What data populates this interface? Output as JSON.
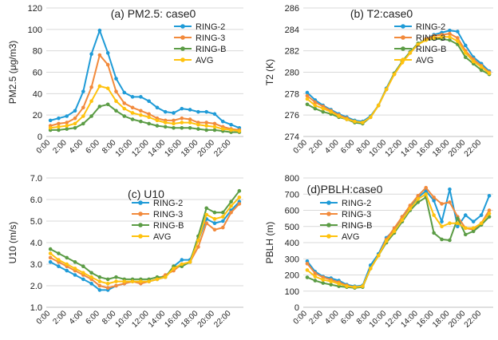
{
  "chart_data": [
    {
      "type": "line",
      "title": "(a) PM2.5: case0",
      "ylabel": "PM2.5 (μg/m3)",
      "ylim": [
        0,
        120
      ],
      "yticks": [
        "0",
        "20",
        "40",
        "60",
        "80",
        "100",
        "120"
      ],
      "legend_position": "top-right",
      "series": [
        {
          "name": "RING-2",
          "color": "#1f9bd7",
          "values": [
            15,
            17,
            19,
            24,
            42,
            77,
            99,
            78,
            54,
            41,
            37,
            37,
            33,
            27,
            23,
            22,
            26,
            25,
            23,
            23,
            21,
            14,
            11,
            8
          ]
        },
        {
          "name": "RING-3",
          "color": "#f28a3c",
          "values": [
            10,
            12,
            13,
            17,
            27,
            46,
            76,
            67,
            42,
            31,
            27,
            24,
            21,
            17,
            15,
            15,
            17,
            16,
            13,
            13,
            12,
            9,
            7,
            6
          ]
        },
        {
          "name": "RING-B",
          "color": "#5b9c45",
          "values": [
            6,
            6,
            7,
            8,
            12,
            19,
            28,
            30,
            24,
            19,
            16,
            14,
            12,
            10,
            9,
            8,
            8,
            8,
            7,
            6,
            6,
            5,
            4,
            4
          ]
        },
        {
          "name": "AVG",
          "color": "#ffc20e",
          "values": [
            8,
            9,
            10,
            12,
            19,
            33,
            47,
            45,
            33,
            26,
            22,
            20,
            18,
            15,
            13,
            12,
            13,
            13,
            11,
            10,
            9,
            7,
            6,
            5
          ]
        }
      ]
    },
    {
      "type": "line",
      "title": "(b) T2:case0",
      "ylabel": "T2 (K)",
      "ylim": [
        274,
        286
      ],
      "yticks": [
        "274",
        "276",
        "278",
        "280",
        "282",
        "284",
        "286"
      ],
      "legend_position": "top-right",
      "series": [
        {
          "name": "RING-2",
          "color": "#1f9bd7",
          "values": [
            278.1,
            277.4,
            276.9,
            276.5,
            276.1,
            275.8,
            275.5,
            275.4,
            275.9,
            276.9,
            278.5,
            279.9,
            281.0,
            281.9,
            282.6,
            283.1,
            283.5,
            283.7,
            283.9,
            283.8,
            282.5,
            281.4,
            280.8,
            280.1
          ]
        },
        {
          "name": "RING-3",
          "color": "#f28a3c",
          "values": [
            277.8,
            277.2,
            276.8,
            276.4,
            276.0,
            275.7,
            275.4,
            275.3,
            275.8,
            276.9,
            278.4,
            279.8,
            280.9,
            281.8,
            282.6,
            283.1,
            283.4,
            283.5,
            283.6,
            283.2,
            282.0,
            281.2,
            280.6,
            280.0
          ]
        },
        {
          "name": "RING-B",
          "color": "#5b9c45",
          "values": [
            277.0,
            276.6,
            276.3,
            276.1,
            275.8,
            275.6,
            275.3,
            275.2,
            275.8,
            276.9,
            278.4,
            279.9,
            281.0,
            281.9,
            282.7,
            283.0,
            283.1,
            283.1,
            283.0,
            282.6,
            281.4,
            280.8,
            280.2,
            279.8
          ]
        },
        {
          "name": "AVG",
          "color": "#ffc20e",
          "values": [
            277.5,
            276.9,
            276.6,
            276.3,
            275.9,
            275.6,
            275.4,
            275.3,
            275.8,
            276.9,
            278.4,
            279.8,
            280.9,
            281.8,
            282.6,
            283.0,
            283.2,
            283.3,
            283.3,
            282.9,
            281.8,
            281.0,
            280.5,
            279.9
          ]
        }
      ]
    },
    {
      "type": "line",
      "title": "(c) U10",
      "ylabel": "U10 (m/s)",
      "ylim": [
        1.0,
        7.0
      ],
      "yticks": [
        "1.0",
        "2.0",
        "3.0",
        "4.0",
        "5.0",
        "6.0",
        "7.0"
      ],
      "legend_position": "center",
      "series": [
        {
          "name": "RING-2",
          "color": "#1f9bd7",
          "values": [
            3.1,
            2.9,
            2.7,
            2.5,
            2.3,
            2.1,
            1.8,
            1.8,
            2.0,
            2.1,
            2.2,
            2.2,
            2.2,
            2.3,
            2.4,
            2.9,
            3.2,
            3.2,
            4.1,
            5.1,
            4.9,
            5.0,
            5.5,
            5.9
          ]
        },
        {
          "name": "RING-3",
          "color": "#f28a3c",
          "values": [
            3.3,
            3.1,
            2.9,
            2.7,
            2.5,
            2.3,
            2.0,
            1.9,
            2.0,
            2.1,
            2.2,
            2.1,
            2.2,
            2.3,
            2.5,
            2.7,
            3.0,
            3.1,
            3.8,
            4.9,
            4.6,
            4.7,
            5.4,
            5.8
          ]
        },
        {
          "name": "RING-B",
          "color": "#5b9c45",
          "values": [
            3.7,
            3.5,
            3.3,
            3.1,
            2.9,
            2.6,
            2.4,
            2.3,
            2.4,
            2.3,
            2.3,
            2.3,
            2.3,
            2.4,
            2.4,
            2.9,
            2.9,
            3.1,
            4.3,
            5.6,
            5.4,
            5.4,
            5.9,
            6.4
          ]
        },
        {
          "name": "AVG",
          "color": "#ffc20e",
          "values": [
            3.5,
            3.2,
            3.0,
            2.8,
            2.6,
            2.4,
            2.2,
            2.1,
            2.2,
            2.2,
            2.2,
            2.2,
            2.2,
            2.3,
            2.4,
            2.8,
            3.0,
            3.1,
            4.1,
            5.3,
            5.1,
            5.2,
            5.7,
            6.1
          ]
        }
      ]
    },
    {
      "type": "line",
      "title": "(d)PBLH:case0",
      "ylabel": "PBLH (m)",
      "ylim": [
        0,
        800
      ],
      "yticks": [
        "0",
        "100",
        "200",
        "300",
        "400",
        "500",
        "600",
        "700",
        "800"
      ],
      "legend_position": "top-left",
      "series": [
        {
          "name": "RING-2",
          "color": "#1f9bd7",
          "values": [
            285,
            220,
            190,
            180,
            165,
            140,
            130,
            135,
            260,
            330,
            430,
            480,
            560,
            620,
            680,
            720,
            660,
            530,
            730,
            500,
            570,
            530,
            570,
            690
          ]
        },
        {
          "name": "RING-3",
          "color": "#f28a3c",
          "values": [
            270,
            210,
            185,
            170,
            155,
            135,
            125,
            130,
            240,
            320,
            420,
            490,
            560,
            630,
            690,
            740,
            680,
            640,
            650,
            560,
            490,
            480,
            520,
            600
          ]
        },
        {
          "name": "RING-B",
          "color": "#5b9c45",
          "values": [
            185,
            165,
            150,
            140,
            130,
            125,
            120,
            125,
            240,
            320,
            400,
            460,
            530,
            600,
            650,
            680,
            460,
            420,
            415,
            550,
            450,
            470,
            510,
            560
          ]
        },
        {
          "name": "AVG",
          "color": "#ffc20e",
          "values": [
            230,
            190,
            170,
            160,
            145,
            130,
            125,
            130,
            240,
            320,
            410,
            470,
            540,
            610,
            670,
            700,
            570,
            500,
            520,
            520,
            490,
            490,
            520,
            580
          ]
        }
      ]
    }
  ],
  "x_tick_labels": [
    "0:00",
    "2:00",
    "4:00",
    "6:00",
    "8:00",
    "10:00",
    "12:00",
    "14:00",
    "16:00",
    "18:00",
    "20:00",
    "22:00"
  ]
}
